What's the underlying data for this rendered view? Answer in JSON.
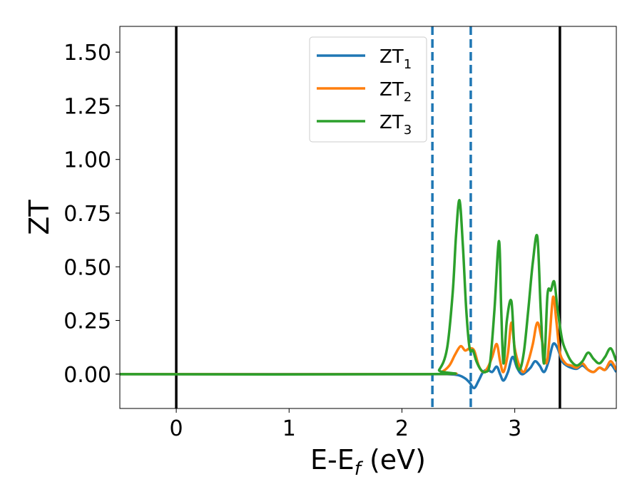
{
  "chart_data": {
    "type": "line",
    "title": "",
    "xlabel": "E-E",
    "xlabel_sub": "f",
    "xlabel_unit": " (eV)",
    "ylabel": "ZT",
    "xlim": [
      -0.5,
      3.9
    ],
    "ylim": [
      -0.16,
      1.62
    ],
    "xticks": [
      0,
      1,
      2,
      3
    ],
    "xtick_labels": [
      "0",
      "1",
      "2",
      "3"
    ],
    "yticks": [
      0.0,
      0.25,
      0.5,
      0.75,
      1.0,
      1.25,
      1.5
    ],
    "ytick_labels": [
      "0.00",
      "0.25",
      "0.50",
      "0.75",
      "1.00",
      "1.25",
      "1.50"
    ],
    "grid": false,
    "legend_position": "top-center",
    "vlines": [
      {
        "x": 0.0,
        "style": "solid",
        "color": "#000000"
      },
      {
        "x": 3.4,
        "style": "solid",
        "color": "#000000"
      },
      {
        "x": 2.27,
        "style": "dashed",
        "color": "#1f77b4"
      },
      {
        "x": 2.61,
        "style": "dashed",
        "color": "#1f77b4"
      }
    ],
    "series": [
      {
        "name": "ZT",
        "name_sub": "1",
        "color": "#1f77b4",
        "x": [
          -0.5,
          2.2,
          2.4,
          2.5,
          2.56,
          2.6,
          2.64,
          2.68,
          2.72,
          2.76,
          2.8,
          2.84,
          2.87,
          2.9,
          2.94,
          2.98,
          3.02,
          3.06,
          3.1,
          3.14,
          3.18,
          3.22,
          3.26,
          3.3,
          3.34,
          3.38,
          3.42,
          3.46,
          3.5,
          3.55,
          3.6,
          3.65,
          3.7,
          3.75,
          3.8,
          3.85,
          3.9
        ],
        "y": [
          0.0,
          0.0,
          0.0,
          -0.005,
          -0.02,
          -0.04,
          -0.065,
          -0.03,
          0.01,
          0.02,
          0.01,
          0.035,
          0.0,
          -0.03,
          0.01,
          0.08,
          0.03,
          0.0,
          0.01,
          0.03,
          0.06,
          0.04,
          0.01,
          0.06,
          0.14,
          0.12,
          0.06,
          0.04,
          0.03,
          0.025,
          0.04,
          0.02,
          0.01,
          0.03,
          0.02,
          0.045,
          0.01
        ]
      },
      {
        "name": "ZT",
        "name_sub": "2",
        "color": "#ff7f0e",
        "x": [
          -0.5,
          2.25,
          2.35,
          2.42,
          2.47,
          2.52,
          2.56,
          2.6,
          2.64,
          2.68,
          2.72,
          2.76,
          2.8,
          2.84,
          2.87,
          2.9,
          2.94,
          2.97,
          3.0,
          3.04,
          3.08,
          3.12,
          3.16,
          3.2,
          3.24,
          3.28,
          3.31,
          3.34,
          3.37,
          3.4,
          3.45,
          3.5,
          3.55,
          3.6,
          3.65,
          3.7,
          3.75,
          3.8,
          3.85,
          3.9
        ],
        "y": [
          0.0,
          0.0,
          0.01,
          0.04,
          0.09,
          0.13,
          0.11,
          0.12,
          0.11,
          0.04,
          0.01,
          0.03,
          0.08,
          0.14,
          0.06,
          0.01,
          0.1,
          0.24,
          0.12,
          0.04,
          0.01,
          0.06,
          0.14,
          0.24,
          0.16,
          0.05,
          0.18,
          0.36,
          0.24,
          0.1,
          0.05,
          0.04,
          0.03,
          0.05,
          0.02,
          0.01,
          0.03,
          0.02,
          0.06,
          0.02
        ]
      },
      {
        "name": "ZT",
        "name_sub": "3",
        "color": "#2ca02c",
        "x": [
          -0.5,
          2.25,
          2.33,
          2.4,
          2.45,
          2.48,
          2.51,
          2.54,
          2.57,
          2.6,
          2.63,
          2.66,
          2.7,
          2.74,
          2.78,
          2.82,
          2.86,
          2.88,
          2.9,
          2.93,
          2.97,
          3.0,
          3.04,
          3.08,
          3.12,
          3.16,
          3.2,
          3.23,
          3.26,
          3.29,
          3.32,
          3.35,
          3.38,
          3.42,
          3.46,
          3.5,
          3.55,
          3.6,
          3.65,
          3.7,
          3.75,
          3.8,
          3.85,
          3.9
        ],
        "y": [
          0.0,
          0.0,
          0.02,
          0.12,
          0.38,
          0.65,
          0.81,
          0.6,
          0.3,
          0.12,
          0.11,
          0.06,
          0.02,
          0.01,
          0.05,
          0.3,
          0.62,
          0.3,
          0.05,
          0.25,
          0.34,
          0.1,
          0.02,
          0.1,
          0.3,
          0.52,
          0.64,
          0.3,
          0.05,
          0.37,
          0.39,
          0.43,
          0.3,
          0.16,
          0.1,
          0.06,
          0.04,
          0.06,
          0.1,
          0.07,
          0.05,
          0.08,
          0.12,
          0.06
        ]
      }
    ]
  }
}
